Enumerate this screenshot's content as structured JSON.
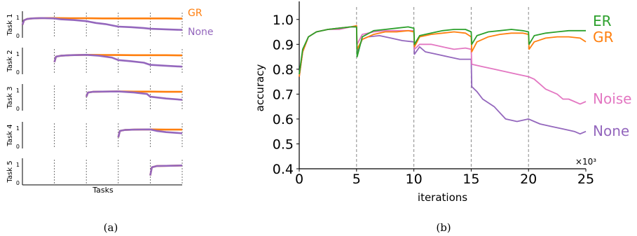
{
  "colors": {
    "GR": "#ff7f0e",
    "None": "#9467bd",
    "ER": "#2ca02c",
    "Noise": "#e377c2",
    "axis": "#000000",
    "grid": "#888888"
  },
  "panels": {
    "a": {
      "caption": "(a)"
    },
    "b": {
      "caption": "(b)"
    }
  },
  "chart_data": [
    {
      "type": "line",
      "panel": "a",
      "xlabel": "Tasks",
      "ylabel_prefix": "Task",
      "y_ticks": [
        "0",
        "1"
      ],
      "ylim": [
        0,
        1
      ],
      "task_boundaries": [
        1,
        2,
        3,
        4,
        5
      ],
      "xlim": [
        0,
        5
      ],
      "legend": [
        "GR",
        "None"
      ],
      "subplots": [
        {
          "name": "Task 1",
          "start": 0,
          "series": [
            {
              "name": "GR",
              "x": [
                0,
                0.05,
                0.15,
                0.3,
                0.6,
                1,
                1.5,
                2,
                2.5,
                3,
                3.5,
                4,
                4.5,
                5
              ],
              "y": [
                0.6,
                0.85,
                0.92,
                0.95,
                0.97,
                0.97,
                0.96,
                0.96,
                0.95,
                0.95,
                0.95,
                0.95,
                0.95,
                0.94
              ]
            },
            {
              "name": "None",
              "x": [
                0,
                0.05,
                0.15,
                0.3,
                0.6,
                1,
                1.2,
                1.6,
                2,
                2.3,
                2.6,
                3,
                3.4,
                3.8,
                4,
                4.5,
                5
              ],
              "y": [
                0.6,
                0.85,
                0.92,
                0.95,
                0.97,
                0.95,
                0.9,
                0.86,
                0.8,
                0.7,
                0.64,
                0.5,
                0.47,
                0.42,
                0.38,
                0.35,
                0.32
              ]
            }
          ]
        },
        {
          "name": "Task 2",
          "start": 1,
          "series": [
            {
              "name": "GR",
              "x": [
                1,
                1.05,
                1.2,
                1.5,
                2,
                2.5,
                3,
                3.5,
                4,
                4.5,
                5
              ],
              "y": [
                0.55,
                0.85,
                0.9,
                0.93,
                0.95,
                0.94,
                0.94,
                0.93,
                0.93,
                0.93,
                0.92
              ]
            },
            {
              "name": "None",
              "x": [
                1,
                1.05,
                1.2,
                1.5,
                2,
                2.4,
                2.8,
                3,
                3.4,
                3.8,
                4,
                4.5,
                5
              ],
              "y": [
                0.55,
                0.85,
                0.9,
                0.93,
                0.95,
                0.9,
                0.8,
                0.66,
                0.6,
                0.52,
                0.4,
                0.35,
                0.3
              ]
            }
          ]
        },
        {
          "name": "Task 3",
          "start": 2,
          "series": [
            {
              "name": "GR",
              "x": [
                2,
                2.05,
                2.2,
                2.5,
                3,
                3.5,
                4,
                4.5,
                5
              ],
              "y": [
                0.65,
                0.88,
                0.92,
                0.93,
                0.94,
                0.93,
                0.93,
                0.92,
                0.92
              ]
            },
            {
              "name": "None",
              "x": [
                2,
                2.05,
                2.2,
                2.5,
                3,
                3.5,
                3.9,
                4,
                4.5,
                5
              ],
              "y": [
                0.65,
                0.88,
                0.92,
                0.93,
                0.94,
                0.88,
                0.8,
                0.65,
                0.55,
                0.48
              ]
            }
          ]
        },
        {
          "name": "Task 4",
          "start": 3,
          "series": [
            {
              "name": "GR",
              "x": [
                3,
                3.05,
                3.2,
                3.5,
                4,
                4.5,
                5
              ],
              "y": [
                0.5,
                0.85,
                0.9,
                0.92,
                0.93,
                0.92,
                0.92
              ]
            },
            {
              "name": "None",
              "x": [
                3,
                3.05,
                3.2,
                3.5,
                4,
                4.2,
                4.5,
                5
              ],
              "y": [
                0.5,
                0.85,
                0.9,
                0.92,
                0.93,
                0.85,
                0.78,
                0.72
              ]
            }
          ]
        },
        {
          "name": "Task 5",
          "start": 4,
          "series": [
            {
              "name": "GR",
              "x": [
                4,
                4.05,
                4.2,
                4.5,
                5
              ],
              "y": [
                0.4,
                0.85,
                0.92,
                0.93,
                0.95
              ]
            },
            {
              "name": "None",
              "x": [
                4,
                4.05,
                4.2,
                4.5,
                5
              ],
              "y": [
                0.4,
                0.85,
                0.92,
                0.93,
                0.95
              ]
            }
          ]
        }
      ]
    },
    {
      "type": "line",
      "panel": "b",
      "xlabel": "iterations",
      "ylabel": "accuracy",
      "xlim": [
        0,
        25
      ],
      "ylim": [
        0.4,
        1.05
      ],
      "x_ticks": [
        0,
        5,
        10,
        15,
        20,
        25
      ],
      "y_ticks": [
        0.4,
        0.5,
        0.6,
        0.7,
        0.8,
        0.9,
        1.0
      ],
      "x_multiplier": "×10³",
      "task_boundaries": [
        5,
        10,
        15,
        20
      ],
      "legend": [
        "ER",
        "GR",
        "Noise",
        "None"
      ],
      "series": [
        {
          "name": "ER",
          "x": [
            0,
            0.3,
            0.8,
            1.5,
            2.5,
            3.5,
            4.5,
            5,
            5.05,
            5.5,
            6.5,
            7.5,
            8.5,
            9.5,
            10,
            10.05,
            10.5,
            11.5,
            12.5,
            13.5,
            14.5,
            15,
            15.05,
            15.5,
            16.5,
            17.5,
            18.5,
            19.5,
            20,
            20.05,
            20.5,
            21.5,
            22.5,
            23.5,
            24.5,
            25
          ],
          "y": [
            0.78,
            0.88,
            0.93,
            0.95,
            0.96,
            0.965,
            0.97,
            0.97,
            0.85,
            0.93,
            0.955,
            0.96,
            0.965,
            0.97,
            0.965,
            0.9,
            0.935,
            0.945,
            0.955,
            0.96,
            0.96,
            0.95,
            0.9,
            0.935,
            0.95,
            0.955,
            0.96,
            0.955,
            0.95,
            0.9,
            0.935,
            0.945,
            0.95,
            0.955,
            0.955,
            0.955
          ]
        },
        {
          "name": "GR",
          "x": [
            0,
            0.3,
            0.8,
            1.5,
            2.5,
            3.5,
            4.5,
            5,
            5.05,
            5.5,
            6.5,
            7.5,
            8.5,
            9.5,
            10,
            10.05,
            10.5,
            11.5,
            12.5,
            13.5,
            14.5,
            15,
            15.05,
            15.5,
            16.5,
            17.5,
            18.5,
            19.5,
            20,
            20.05,
            20.5,
            21.5,
            22.5,
            23.5,
            24.5,
            25
          ],
          "y": [
            0.77,
            0.87,
            0.93,
            0.95,
            0.96,
            0.965,
            0.97,
            0.975,
            0.88,
            0.92,
            0.94,
            0.95,
            0.95,
            0.955,
            0.95,
            0.89,
            0.93,
            0.94,
            0.945,
            0.95,
            0.945,
            0.93,
            0.87,
            0.91,
            0.93,
            0.94,
            0.945,
            0.945,
            0.94,
            0.88,
            0.91,
            0.925,
            0.93,
            0.93,
            0.925,
            0.91
          ]
        },
        {
          "name": "Noise",
          "x": [
            0,
            0.3,
            0.8,
            1.5,
            2.5,
            3.5,
            4.5,
            5,
            5.05,
            5.5,
            6.5,
            7.5,
            8.5,
            9.5,
            10,
            10.05,
            10.5,
            11.5,
            12.5,
            13.5,
            14.5,
            15,
            15.05,
            16,
            17,
            18,
            19,
            20,
            20.5,
            21,
            21.5,
            22,
            22.5,
            23,
            23.5,
            24,
            24.5,
            25
          ],
          "y": [
            0.77,
            0.87,
            0.93,
            0.95,
            0.96,
            0.96,
            0.97,
            0.975,
            0.9,
            0.94,
            0.95,
            0.955,
            0.955,
            0.955,
            0.955,
            0.88,
            0.9,
            0.9,
            0.89,
            0.88,
            0.885,
            0.88,
            0.82,
            0.81,
            0.8,
            0.79,
            0.78,
            0.77,
            0.76,
            0.74,
            0.72,
            0.71,
            0.7,
            0.68,
            0.68,
            0.67,
            0.66,
            0.67
          ]
        },
        {
          "name": "None",
          "x": [
            0,
            0.3,
            0.8,
            1.5,
            2.5,
            3.5,
            4.5,
            5,
            5.05,
            5.5,
            6,
            7,
            8,
            9,
            10,
            10.05,
            10.5,
            11,
            12,
            13,
            14,
            15,
            15.05,
            15.5,
            16,
            17,
            18,
            19,
            20,
            20.5,
            21,
            22,
            23,
            24,
            24.5,
            25
          ],
          "y": [
            0.77,
            0.87,
            0.93,
            0.95,
            0.96,
            0.965,
            0.97,
            0.97,
            0.87,
            0.92,
            0.93,
            0.935,
            0.925,
            0.915,
            0.91,
            0.86,
            0.89,
            0.87,
            0.86,
            0.85,
            0.84,
            0.84,
            0.73,
            0.71,
            0.68,
            0.65,
            0.6,
            0.59,
            0.6,
            0.59,
            0.58,
            0.57,
            0.56,
            0.55,
            0.54,
            0.55
          ]
        }
      ]
    }
  ]
}
